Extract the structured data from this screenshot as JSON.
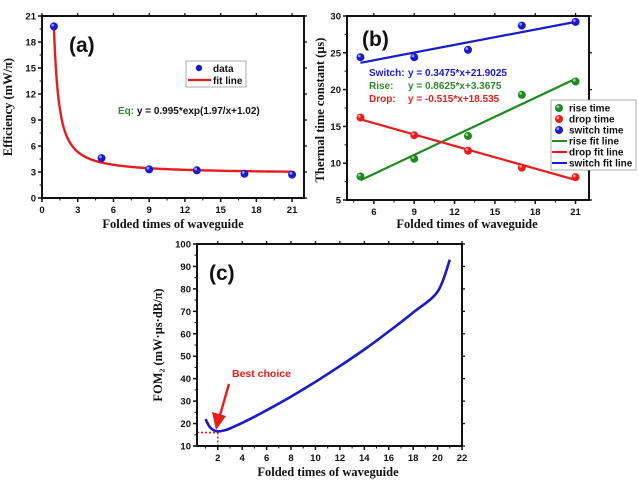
{
  "chart_data": [
    {
      "id": "a",
      "type": "scatter",
      "panel_label": "(a)",
      "title": "",
      "xlabel": "Folded times of waveguide",
      "ylabel": "Efficiency (mW/π)",
      "xlim": [
        0,
        22
      ],
      "ylim": [
        0,
        21
      ],
      "xticks": [
        0,
        3,
        6,
        9,
        12,
        15,
        18,
        21
      ],
      "yticks": [
        0,
        3,
        6,
        9,
        12,
        15,
        18,
        21
      ],
      "grid": false,
      "legend": {
        "placement": "upper-right-inside",
        "entries": [
          {
            "label": "data",
            "kind": "marker",
            "color": "#1a1acc"
          },
          {
            "label": "fit line",
            "kind": "line",
            "color": "#e81c1c"
          }
        ]
      },
      "series": [
        {
          "name": "data",
          "kind": "points",
          "color": "#1a1acc",
          "x": [
            1,
            5,
            9,
            13,
            17,
            21
          ],
          "y": [
            19.8,
            4.6,
            3.3,
            3.2,
            2.8,
            2.7
          ]
        },
        {
          "name": "fit line",
          "kind": "function",
          "color": "#e81c1c",
          "formula": "0.995*exp(1.97/x+1.02)",
          "x_range": [
            1,
            21
          ]
        }
      ],
      "annotations": [
        {
          "prefix": "Eq:",
          "prefix_color": "#2e8b2e",
          "text": " y = 0.995*exp(1.97/x+1.02)",
          "color": "#111111"
        }
      ]
    },
    {
      "id": "b",
      "type": "scatter",
      "panel_label": "(b)",
      "title": "",
      "xlabel": "Folded times of waveguide",
      "ylabel": "Thermal time constant (μs)",
      "xlim": [
        4,
        22
      ],
      "ylim": [
        5,
        30
      ],
      "xticks": [
        6,
        9,
        12,
        15,
        18,
        21
      ],
      "yticks": [
        5,
        10,
        15,
        20,
        25,
        30
      ],
      "grid": false,
      "legend": {
        "placement": "right-outside",
        "entries": [
          {
            "label": "rise time",
            "kind": "marker",
            "color": "#1f8a1f"
          },
          {
            "label": "drop time",
            "kind": "marker",
            "color": "#e81c1c"
          },
          {
            "label": "switch time",
            "kind": "marker",
            "color": "#1a1acc"
          },
          {
            "label": "rise fit line",
            "kind": "line",
            "color": "#1f8a1f"
          },
          {
            "label": "drop fit line",
            "kind": "line",
            "color": "#e81c1c"
          },
          {
            "label": "switch fit line",
            "kind": "line",
            "color": "#1a1acc"
          }
        ]
      },
      "series": [
        {
          "name": "rise time",
          "kind": "points",
          "color": "#1f8a1f",
          "x": [
            5,
            9,
            13,
            17,
            21
          ],
          "y": [
            8.2,
            10.6,
            13.7,
            19.3,
            21.1
          ]
        },
        {
          "name": "drop time",
          "kind": "points",
          "color": "#e81c1c",
          "x": [
            5,
            9,
            13,
            17,
            21
          ],
          "y": [
            16.2,
            13.8,
            11.7,
            9.4,
            8.1
          ]
        },
        {
          "name": "switch time",
          "kind": "points",
          "color": "#1a1acc",
          "x": [
            5,
            9,
            13,
            17,
            21
          ],
          "y": [
            24.4,
            24.4,
            25.4,
            28.7,
            29.2
          ]
        },
        {
          "name": "rise fit line",
          "kind": "linear",
          "color": "#1f8a1f",
          "slope": 0.8625,
          "intercept": 3.3675,
          "x_range": [
            5,
            21
          ]
        },
        {
          "name": "drop fit line",
          "kind": "linear",
          "color": "#e81c1c",
          "slope": -0.515,
          "intercept": 18.535,
          "x_range": [
            5,
            21
          ]
        },
        {
          "name": "switch fit line",
          "kind": "linear",
          "color": "#1a1acc",
          "slope": 0.3475,
          "intercept": 21.9025,
          "x_range": [
            5,
            21
          ]
        }
      ],
      "annotations": [
        {
          "label": "Switch:",
          "text": "y = 0.3475*x+21.9025",
          "color": "#1a1acc"
        },
        {
          "label": "Rise:",
          "text": "y = 0.8625*x+3.3675",
          "color": "#2e8b2e"
        },
        {
          "label": "Drop:",
          "text": "y = -0.515*x+18.535",
          "color": "#e81c1c"
        }
      ]
    },
    {
      "id": "c",
      "type": "line",
      "panel_label": "(c)",
      "title": "",
      "xlabel": "Folded times of waveguide",
      "ylabel": "FOM₂ (mW·μs·dB/π)",
      "xlim": [
        0.3,
        22
      ],
      "ylim": [
        10,
        100
      ],
      "xticks": [
        2,
        4,
        6,
        8,
        10,
        12,
        14,
        16,
        18,
        20,
        22
      ],
      "yticks": [
        10,
        20,
        30,
        40,
        50,
        60,
        70,
        80,
        90,
        100
      ],
      "grid": false,
      "series": [
        {
          "name": "FOM2",
          "kind": "curve",
          "color": "#1a1acc",
          "x": [
            1,
            1.3,
            1.6,
            2,
            2.5,
            3,
            4,
            5,
            6,
            8,
            10,
            12,
            14,
            16,
            18,
            20,
            21
          ],
          "y": [
            22,
            18.8,
            17.2,
            16.5,
            16.9,
            17.8,
            20.3,
            23.0,
            25.9,
            32.0,
            38.6,
            45.6,
            53.0,
            61.0,
            69.5,
            78.8,
            93
          ]
        }
      ],
      "annotations": [
        {
          "text": "Best choice",
          "color": "#e81c1c",
          "points_to": {
            "x": 2,
            "y": 16.5
          }
        }
      ],
      "reference_lines": {
        "x": 2,
        "y": 16,
        "color": "#e81c1c",
        "style": "dotted"
      }
    }
  ]
}
